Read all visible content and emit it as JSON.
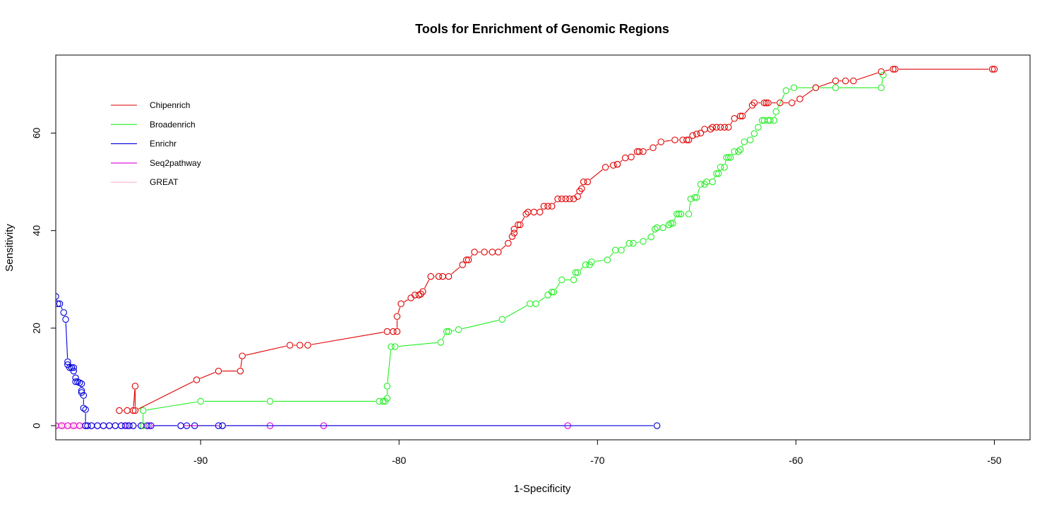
{
  "chart_data": {
    "type": "line",
    "title": "Tools for Enrichment of Genomic Regions",
    "xlabel": "1-Specificity",
    "ylabel": "Sensitivity",
    "xlim": [
      -97.3,
      -48.2
    ],
    "ylim": [
      -2.9,
      76
    ],
    "x_ticks": [
      -90,
      -80,
      -70,
      -60,
      -50
    ],
    "y_ticks": [
      0,
      20,
      40,
      60
    ],
    "grid": false,
    "legend_position": "top-left",
    "markers": "open-circle",
    "series": [
      {
        "name": "Chipenrich",
        "color": "#e00000",
        "x": [
          -94.1,
          -93.7,
          -93.4,
          -93.3,
          -93.3,
          -90.2,
          -89.1,
          -88.0,
          -87.9,
          -85.5,
          -85.0,
          -84.6,
          -80.6,
          -80.3,
          -80.1,
          -80.1,
          -79.9,
          -79.4,
          -79.2,
          -79.0,
          -78.9,
          -78.8,
          -78.4,
          -78.0,
          -77.8,
          -77.5,
          -76.8,
          -76.6,
          -76.5,
          -76.2,
          -75.7,
          -75.3,
          -75.0,
          -74.5,
          -74.3,
          -74.2,
          -74.2,
          -74.0,
          -73.9,
          -73.6,
          -73.5,
          -73.2,
          -72.9,
          -72.7,
          -72.5,
          -72.3,
          -72.0,
          -71.8,
          -71.6,
          -71.4,
          -71.2,
          -71.0,
          -70.9,
          -70.8,
          -70.7,
          -70.5,
          -69.6,
          -69.2,
          -69.0,
          -69.0,
          -68.6,
          -68.3,
          -68.0,
          -67.9,
          -67.7,
          -67.2,
          -66.8,
          -66.1,
          -65.7,
          -65.5,
          -65.4,
          -65.2,
          -65.0,
          -64.8,
          -64.6,
          -64.3,
          -64.2,
          -64.0,
          -63.8,
          -63.6,
          -63.4,
          -63.1,
          -62.8,
          -62.7,
          -62.2,
          -62.1,
          -61.6,
          -61.5,
          -61.4,
          -60.8,
          -60.2,
          -59.8,
          -59.0,
          -58.0,
          -57.5,
          -57.1,
          -55.7,
          -55.1,
          -55.0,
          -50.1,
          -50.0
        ],
        "y": [
          3.1,
          3.1,
          3.1,
          8.1,
          3.1,
          9.4,
          11.2,
          11.2,
          14.3,
          16.5,
          16.5,
          16.5,
          19.3,
          19.3,
          19.3,
          22.4,
          25.0,
          26.2,
          26.8,
          26.8,
          27.0,
          27.5,
          30.6,
          30.6,
          30.6,
          30.6,
          33.0,
          34.0,
          34.0,
          35.6,
          35.6,
          35.6,
          35.6,
          37.4,
          38.8,
          39.5,
          40.3,
          41.2,
          41.2,
          43.4,
          43.8,
          43.8,
          43.8,
          45.0,
          45.0,
          45.0,
          46.5,
          46.5,
          46.5,
          46.5,
          46.5,
          47.0,
          48.1,
          48.6,
          50.0,
          50.0,
          53.0,
          53.4,
          53.6,
          53.6,
          54.9,
          55.1,
          56.2,
          56.2,
          56.2,
          57.0,
          58.2,
          58.6,
          58.6,
          58.6,
          58.6,
          59.5,
          59.8,
          60.0,
          60.8,
          60.8,
          61.2,
          61.2,
          61.2,
          61.2,
          61.2,
          63.0,
          63.5,
          63.5,
          65.7,
          66.2,
          66.2,
          66.2,
          66.2,
          66.2,
          66.2,
          67.0,
          69.3,
          70.7,
          70.7,
          70.7,
          72.6,
          73.1,
          73.1,
          73.1,
          73.1
        ]
      },
      {
        "name": "Broadenrich",
        "color": "#22ee22",
        "x": [
          -92.9,
          -92.9,
          -90.0,
          -86.5,
          -81.0,
          -80.8,
          -80.7,
          -80.6,
          -80.6,
          -80.4,
          -80.2,
          -77.9,
          -77.6,
          -77.5,
          -77.0,
          -74.8,
          -73.4,
          -73.1,
          -72.5,
          -72.3,
          -72.2,
          -71.8,
          -71.2,
          -71.1,
          -71.0,
          -70.6,
          -70.4,
          -70.3,
          -69.5,
          -69.1,
          -68.8,
          -68.4,
          -68.2,
          -67.7,
          -67.3,
          -67.1,
          -67.0,
          -66.7,
          -66.4,
          -66.3,
          -66.2,
          -66.0,
          -65.9,
          -65.8,
          -65.4,
          -65.3,
          -65.1,
          -65.0,
          -64.8,
          -64.6,
          -64.5,
          -64.2,
          -64.0,
          -63.9,
          -63.8,
          -63.6,
          -63.5,
          -63.4,
          -63.3,
          -63.1,
          -62.9,
          -62.8,
          -62.6,
          -62.3,
          -62.1,
          -61.9,
          -61.7,
          -61.6,
          -61.4,
          -61.3,
          -61.1,
          -61.0,
          -60.5,
          -60.1,
          -59.0,
          -58.0,
          -55.7,
          -55.6
        ],
        "y": [
          0,
          3.1,
          5.0,
          5.0,
          5.0,
          5.0,
          5.0,
          5.6,
          8.1,
          16.2,
          16.2,
          17.1,
          19.3,
          19.3,
          19.7,
          21.8,
          25.0,
          25.0,
          26.8,
          27.4,
          27.4,
          29.9,
          29.9,
          31.4,
          31.4,
          33.0,
          33.0,
          33.6,
          34.0,
          36.0,
          36.0,
          37.4,
          37.4,
          37.8,
          38.7,
          40.3,
          40.6,
          40.6,
          41.2,
          41.5,
          41.5,
          43.4,
          43.4,
          43.4,
          43.4,
          46.5,
          46.8,
          46.8,
          49.5,
          49.5,
          50.0,
          50.0,
          51.7,
          51.7,
          53.0,
          53.0,
          55.0,
          55.0,
          55.0,
          56.2,
          56.2,
          56.6,
          58.2,
          58.6,
          59.9,
          61.2,
          62.6,
          62.6,
          62.6,
          62.6,
          62.6,
          64.4,
          68.7,
          69.3,
          69.3,
          69.3,
          69.3,
          71.9
        ]
      },
      {
        "name": "Enrichr",
        "color": "#0000dd",
        "x": [
          -97.3,
          -97.2,
          -97.1,
          -96.9,
          -96.8,
          -96.7,
          -96.7,
          -96.6,
          -96.5,
          -96.5,
          -96.4,
          -96.4,
          -96.3,
          -96.3,
          -96.2,
          -96.1,
          -96.0,
          -96.0,
          -96.0,
          -95.9,
          -95.9,
          -95.8,
          -95.8,
          -95.7,
          -95.5,
          -95.2,
          -94.9,
          -94.6,
          -94.3,
          -94.0,
          -93.8,
          -93.6,
          -93.4,
          -93.0,
          -92.7,
          -92.5,
          -91.0,
          -90.7,
          -90.3,
          -89.1,
          -88.9,
          -67.0
        ],
        "y": [
          26.5,
          25.0,
          25.0,
          23.2,
          21.8,
          13.1,
          12.5,
          11.9,
          11.9,
          11.9,
          11.9,
          11.2,
          9.8,
          9.0,
          9.0,
          8.8,
          8.6,
          7.2,
          6.8,
          6.2,
          3.6,
          3.3,
          0,
          0,
          0,
          0,
          0,
          0,
          0,
          0,
          0,
          0,
          0,
          0,
          0,
          0,
          0,
          0,
          0,
          0,
          0,
          0
        ]
      },
      {
        "name": "Seq2pathway",
        "color": "#dd00dd",
        "x": [
          -97.3,
          -97.0,
          -96.7,
          -96.4,
          -96.1,
          -95.8,
          -95.5,
          -95.2,
          -94.9,
          -94.6,
          -94.3,
          -94.0,
          -93.7,
          -93.4,
          -93.0,
          -92.6,
          -91.0,
          -88.9,
          -86.5,
          -83.8,
          -71.5
        ],
        "y": [
          0,
          0,
          0,
          0,
          0,
          0,
          0,
          0,
          0,
          0,
          0,
          0,
          0,
          0,
          0,
          0,
          0,
          0,
          0,
          0,
          0
        ]
      },
      {
        "name": "GREAT",
        "color": "#ffb6c8",
        "x": [
          -97.3,
          -97.1,
          -96.9,
          -96.7,
          -96.5,
          -96.3,
          -96.1,
          -95.9
        ],
        "y": [
          0,
          0,
          0,
          0,
          0,
          0,
          0,
          0
        ]
      }
    ]
  }
}
